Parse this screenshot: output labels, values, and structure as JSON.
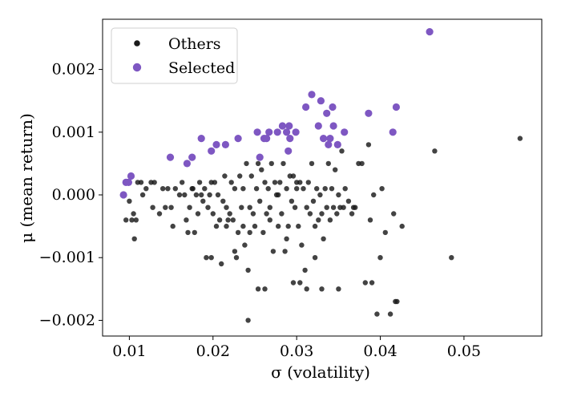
{
  "chart_data": {
    "type": "scatter",
    "xlabel": "σ (volatility)",
    "ylabel": "μ (mean return)",
    "xlim": [
      0.0068,
      0.0593
    ],
    "ylim": [
      -0.00225,
      0.0028
    ],
    "x_ticks": [
      {
        "value": 0.01,
        "label": "0.01"
      },
      {
        "value": 0.02,
        "label": "0.02"
      },
      {
        "value": 0.03,
        "label": "0.03"
      },
      {
        "value": 0.04,
        "label": "0.04"
      },
      {
        "value": 0.05,
        "label": "0.05"
      }
    ],
    "y_ticks": [
      {
        "value": -0.002,
        "label": "−0.002"
      },
      {
        "value": -0.001,
        "label": "−0.001"
      },
      {
        "value": 0.0,
        "label": "0.000"
      },
      {
        "value": 0.001,
        "label": "0.001"
      },
      {
        "value": 0.002,
        "label": "0.002"
      }
    ],
    "grid": false,
    "legend_position": "top-left",
    "series": [
      {
        "name": "Others",
        "color": "#1a1a1a",
        "marker": "small-circle",
        "points": [
          [
            0.0096,
            -0.0004
          ],
          [
            0.01,
            -0.0001
          ],
          [
            0.0103,
            -0.0004
          ],
          [
            0.0105,
            -0.0003
          ],
          [
            0.0106,
            -0.0007
          ],
          [
            0.0108,
            -0.0004
          ],
          [
            0.011,
            0.0002
          ],
          [
            0.0114,
            0.0002
          ],
          [
            0.0116,
            0.0
          ],
          [
            0.012,
            0.0001
          ],
          [
            0.0126,
            0.0002
          ],
          [
            0.0128,
            -0.0002
          ],
          [
            0.013,
            0.0002
          ],
          [
            0.0136,
            -0.0003
          ],
          [
            0.014,
            0.0001
          ],
          [
            0.0143,
            -0.0002
          ],
          [
            0.0146,
            0.0001
          ],
          [
            0.015,
            -0.0002
          ],
          [
            0.0152,
            -0.0005
          ],
          [
            0.0155,
            0.0001
          ],
          [
            0.016,
            0.0
          ],
          [
            0.0163,
            0.0002
          ],
          [
            0.0166,
            0.0
          ],
          [
            0.0168,
            -0.0004
          ],
          [
            0.017,
            -0.0006
          ],
          [
            0.0172,
            -0.0002
          ],
          [
            0.0175,
            0.0001
          ],
          [
            0.0178,
            -0.0006
          ],
          [
            0.018,
            0.0
          ],
          [
            0.0182,
            -0.0003
          ],
          [
            0.0184,
            0.0002
          ],
          [
            0.0186,
            0.0
          ],
          [
            0.0188,
            -0.0001
          ],
          [
            0.019,
            0.0001
          ],
          [
            0.0192,
            -0.001
          ],
          [
            0.0194,
            -0.0002
          ],
          [
            0.0196,
            0.0
          ],
          [
            0.0198,
            -0.001
          ],
          [
            0.02,
            -0.0003
          ],
          [
            0.0202,
            0.0002
          ],
          [
            0.0204,
            -0.0005
          ],
          [
            0.0206,
            0.0
          ],
          [
            0.0208,
            -0.0004
          ],
          [
            0.021,
            -0.0011
          ],
          [
            0.0212,
            -0.0001
          ],
          [
            0.0214,
            0.0003
          ],
          [
            0.0216,
            -0.0002
          ],
          [
            0.0218,
            -0.0004
          ],
          [
            0.022,
            -0.0003
          ],
          [
            0.0222,
            0.0002
          ],
          [
            0.0224,
            -0.0004
          ],
          [
            0.0226,
            0.0001
          ],
          [
            0.0228,
            -0.001
          ],
          [
            0.023,
            -0.0006
          ],
          [
            0.0232,
            0.0003
          ],
          [
            0.0234,
            -0.0002
          ],
          [
            0.0236,
            0.0001
          ],
          [
            0.0238,
            -0.0008
          ],
          [
            0.024,
            0.0005
          ],
          [
            0.0242,
            -0.0012
          ],
          [
            0.0244,
            -0.0002
          ],
          [
            0.0246,
            0.0003
          ],
          [
            0.0248,
            -0.0003
          ],
          [
            0.025,
            -0.0005
          ],
          [
            0.0252,
            0.0001
          ],
          [
            0.0254,
            0.0005
          ],
          [
            0.0256,
            -0.0001
          ],
          [
            0.0258,
            0.0004
          ],
          [
            0.026,
            -0.0006
          ],
          [
            0.0262,
            0.0002
          ],
          [
            0.0264,
            -0.0003
          ],
          [
            0.0266,
            0.0001
          ],
          [
            0.0268,
            -0.0002
          ],
          [
            0.027,
            0.0005
          ],
          [
            0.0272,
            -0.0009
          ],
          [
            0.0274,
            0.0002
          ],
          [
            0.0276,
            0.0
          ],
          [
            0.0278,
            -0.0005
          ],
          [
            0.028,
            0.0002
          ],
          [
            0.0282,
            -0.0003
          ],
          [
            0.0284,
            0.0005
          ],
          [
            0.0286,
            -0.0009
          ],
          [
            0.0288,
            0.0001
          ],
          [
            0.029,
            -0.0005
          ],
          [
            0.0292,
            0.0003
          ],
          [
            0.0294,
            -0.0001
          ],
          [
            0.0296,
            0.0003
          ],
          [
            0.0298,
            -0.0002
          ],
          [
            0.03,
            0.0001
          ],
          [
            0.0302,
            -0.0005
          ],
          [
            0.0304,
            0.0002
          ],
          [
            0.0306,
            -0.0008
          ],
          [
            0.0308,
            0.0001
          ],
          [
            0.031,
            -0.0012
          ],
          [
            0.0312,
            -0.0002
          ],
          [
            0.0314,
            0.0002
          ],
          [
            0.0316,
            -0.0003
          ],
          [
            0.0318,
            0.0005
          ],
          [
            0.032,
            -0.0001
          ],
          [
            0.0322,
            -0.001
          ],
          [
            0.0324,
            0.0001
          ],
          [
            0.0326,
            -0.0004
          ],
          [
            0.0328,
            0.0
          ],
          [
            0.033,
            -0.0003
          ],
          [
            0.0332,
            -0.0007
          ],
          [
            0.0334,
            0.0001
          ],
          [
            0.0336,
            -0.0002
          ],
          [
            0.0338,
            0.0005
          ],
          [
            0.034,
            -0.0004
          ],
          [
            0.0342,
            0.0001
          ],
          [
            0.0344,
            -0.0002
          ],
          [
            0.0346,
            0.0004
          ],
          [
            0.0348,
            -0.0003
          ],
          [
            0.035,
            0.0
          ],
          [
            0.0352,
            -0.0002
          ],
          [
            0.0354,
            0.0007
          ],
          [
            0.0356,
            -0.0002
          ],
          [
            0.0358,
            0.0001
          ],
          [
            0.0362,
            -0.0001
          ],
          [
            0.0366,
            -0.0003
          ],
          [
            0.037,
            -0.0002
          ],
          [
            0.0374,
            0.0005
          ],
          [
            0.0378,
            0.0005
          ],
          [
            0.0382,
            -0.0014
          ],
          [
            0.0386,
            0.0008
          ],
          [
            0.0388,
            -0.0004
          ],
          [
            0.039,
            -0.0014
          ],
          [
            0.0392,
            0.0
          ],
          [
            0.0396,
            -0.0019
          ],
          [
            0.04,
            -0.001
          ],
          [
            0.0402,
            0.0001
          ],
          [
            0.0406,
            -0.0006
          ],
          [
            0.0412,
            -0.0019
          ],
          [
            0.0416,
            -0.0003
          ],
          [
            0.0418,
            -0.0017
          ],
          [
            0.042,
            -0.0017
          ],
          [
            0.0426,
            -0.0005
          ],
          [
            0.0242,
            -0.002
          ],
          [
            0.0254,
            -0.0015
          ],
          [
            0.0262,
            -0.0015
          ],
          [
            0.0296,
            -0.0014
          ],
          [
            0.0304,
            -0.0014
          ],
          [
            0.0312,
            -0.0015
          ],
          [
            0.033,
            -0.0015
          ],
          [
            0.035,
            -0.0015
          ],
          [
            0.0368,
            -0.0002
          ],
          [
            0.0465,
            0.0007
          ],
          [
            0.0485,
            -0.001
          ],
          [
            0.0567,
            0.0009
          ],
          [
            0.0176,
            0.0001
          ],
          [
            0.0198,
            0.0002
          ],
          [
            0.0216,
            -0.0005
          ],
          [
            0.0226,
            -0.0009
          ],
          [
            0.0236,
            -0.0005
          ],
          [
            0.0244,
            -0.0006
          ],
          [
            0.0268,
            -0.0004
          ],
          [
            0.0278,
            0.0
          ],
          [
            0.0288,
            -0.0007
          ],
          [
            0.03,
            0.0002
          ],
          [
            0.0322,
            -0.0005
          ]
        ]
      },
      {
        "name": "Selected",
        "color": "#7e57c2",
        "marker": "circle",
        "points": [
          [
            0.0093,
            0.0
          ],
          [
            0.0096,
            0.0002
          ],
          [
            0.0099,
            0.0002
          ],
          [
            0.0102,
            0.0003
          ],
          [
            0.0149,
            0.0006
          ],
          [
            0.0169,
            0.0005
          ],
          [
            0.0175,
            0.0006
          ],
          [
            0.0186,
            0.0009
          ],
          [
            0.0198,
            0.0007
          ],
          [
            0.0204,
            0.0008
          ],
          [
            0.0215,
            0.0008
          ],
          [
            0.023,
            0.0009
          ],
          [
            0.0253,
            0.001
          ],
          [
            0.0256,
            0.0006
          ],
          [
            0.0261,
            0.0009
          ],
          [
            0.0264,
            0.0009
          ],
          [
            0.0267,
            0.001
          ],
          [
            0.0277,
            0.001
          ],
          [
            0.0283,
            0.0011
          ],
          [
            0.0288,
            0.001
          ],
          [
            0.029,
            0.0007
          ],
          [
            0.0291,
            0.0011
          ],
          [
            0.0292,
            0.0009
          ],
          [
            0.0299,
            0.001
          ],
          [
            0.0311,
            0.0014
          ],
          [
            0.0318,
            0.0016
          ],
          [
            0.0326,
            0.0011
          ],
          [
            0.0329,
            0.0015
          ],
          [
            0.0332,
            0.0009
          ],
          [
            0.0336,
            0.0013
          ],
          [
            0.0338,
            0.0008
          ],
          [
            0.034,
            0.0009
          ],
          [
            0.0343,
            0.0014
          ],
          [
            0.0344,
            0.0011
          ],
          [
            0.0349,
            0.0008
          ],
          [
            0.0357,
            0.001
          ],
          [
            0.0386,
            0.0013
          ],
          [
            0.0415,
            0.001
          ],
          [
            0.0419,
            0.0014
          ],
          [
            0.0459,
            0.0026
          ]
        ]
      }
    ]
  }
}
